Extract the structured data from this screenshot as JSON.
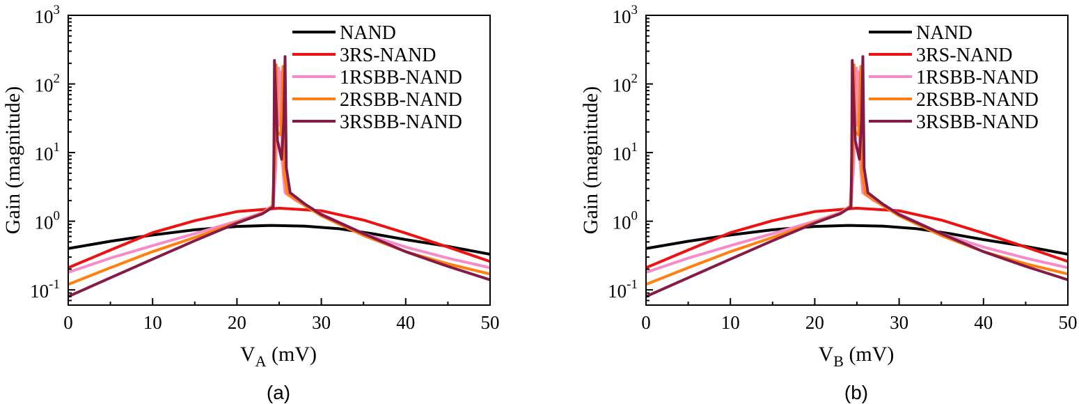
{
  "chart_data": [
    {
      "type": "line",
      "panel_label": "(a)",
      "xlabel_main": "V",
      "xlabel_sub": "A",
      "xlabel_unit": " (mV)",
      "ylabel": "Gain (magnitude)",
      "xlim": [
        0,
        50
      ],
      "ylim": [
        0.06,
        1000
      ],
      "y_scale": "log",
      "x_ticks": [
        0,
        10,
        20,
        30,
        40,
        50
      ],
      "x_minor_ticks": [
        5,
        15,
        25,
        35,
        45
      ],
      "y_ticks": [
        {
          "value": 0.1,
          "base": "10",
          "exp": "-1"
        },
        {
          "value": 1,
          "base": "10",
          "exp": "0"
        },
        {
          "value": 10,
          "base": "10",
          "exp": "1"
        },
        {
          "value": 100,
          "base": "10",
          "exp": "2"
        },
        {
          "value": 1000,
          "base": "10",
          "exp": "3"
        }
      ],
      "legend_position": "top-right",
      "series": [
        {
          "name": "NAND",
          "color": "#000000",
          "points": [
            [
              0,
              0.4
            ],
            [
              5,
              0.51
            ],
            [
              10,
              0.63
            ],
            [
              15,
              0.75
            ],
            [
              20,
              0.84
            ],
            [
              24,
              0.87
            ],
            [
              28,
              0.85
            ],
            [
              32,
              0.78
            ],
            [
              36,
              0.66
            ],
            [
              40,
              0.54
            ],
            [
              45,
              0.43
            ],
            [
              50,
              0.33
            ]
          ]
        },
        {
          "name": "3RS-NAND",
          "color": "#ee1111",
          "points": [
            [
              0,
              0.21
            ],
            [
              5,
              0.38
            ],
            [
              10,
              0.68
            ],
            [
              15,
              1.02
            ],
            [
              20,
              1.38
            ],
            [
              25,
              1.55
            ],
            [
              30,
              1.42
            ],
            [
              35,
              1.04
            ],
            [
              40,
              0.67
            ],
            [
              45,
              0.42
            ],
            [
              50,
              0.26
            ]
          ]
        },
        {
          "name": "1RSBB-NAND",
          "color": "#f78ac8",
          "points": [
            [
              0,
              0.18
            ],
            [
              5,
              0.29
            ],
            [
              10,
              0.44
            ],
            [
              15,
              0.66
            ],
            [
              20,
              1.0
            ],
            [
              23,
              1.33
            ],
            [
              24.3,
              1.7
            ],
            [
              24.6,
              6
            ],
            [
              24.8,
              60
            ],
            [
              24.95,
              170
            ],
            [
              25.05,
              25
            ],
            [
              25.2,
              150
            ],
            [
              25.35,
              8
            ],
            [
              25.7,
              2.6
            ],
            [
              27,
              2.0
            ],
            [
              30,
              1.28
            ],
            [
              35,
              0.66
            ],
            [
              40,
              0.42
            ],
            [
              45,
              0.29
            ],
            [
              50,
              0.21
            ]
          ]
        },
        {
          "name": "2RSBB-NAND",
          "color": "#ff8010",
          "points": [
            [
              0,
              0.12
            ],
            [
              5,
              0.21
            ],
            [
              10,
              0.36
            ],
            [
              15,
              0.58
            ],
            [
              20,
              0.96
            ],
            [
              23,
              1.3
            ],
            [
              24.2,
              1.65
            ],
            [
              24.5,
              8
            ],
            [
              24.65,
              190
            ],
            [
              24.8,
              20
            ],
            [
              25.2,
              18
            ],
            [
              25.45,
              180
            ],
            [
              25.6,
              5
            ],
            [
              26,
              2.5
            ],
            [
              28,
              1.7
            ],
            [
              30,
              1.2
            ],
            [
              35,
              0.62
            ],
            [
              40,
              0.36
            ],
            [
              45,
              0.24
            ],
            [
              50,
              0.17
            ]
          ]
        },
        {
          "name": "3RSBB-NAND",
          "color": "#861a46",
          "points": [
            [
              0,
              0.08
            ],
            [
              5,
              0.15
            ],
            [
              10,
              0.28
            ],
            [
              15,
              0.52
            ],
            [
              20,
              0.94
            ],
            [
              23,
              1.28
            ],
            [
              24.3,
              1.62
            ],
            [
              24.38,
              10
            ],
            [
              24.45,
              220
            ],
            [
              24.55,
              100
            ],
            [
              24.8,
              15
            ],
            [
              25.3,
              8
            ],
            [
              25.55,
              30
            ],
            [
              25.7,
              250
            ],
            [
              25.85,
              6
            ],
            [
              26.3,
              2.6
            ],
            [
              28,
              1.8
            ],
            [
              30,
              1.25
            ],
            [
              35,
              0.66
            ],
            [
              40,
              0.36
            ],
            [
              45,
              0.22
            ],
            [
              50,
              0.14
            ]
          ]
        }
      ]
    },
    {
      "type": "line",
      "panel_label": "(b)",
      "xlabel_main": "V",
      "xlabel_sub": "B",
      "xlabel_unit": " (mV)",
      "ylabel": "Gain (magnitude)",
      "xlim": [
        0,
        50
      ],
      "ylim": [
        0.06,
        1000
      ],
      "y_scale": "log",
      "x_ticks": [
        0,
        10,
        20,
        30,
        40,
        50
      ],
      "x_minor_ticks": [
        5,
        15,
        25,
        35,
        45
      ],
      "y_ticks": [
        {
          "value": 0.1,
          "base": "10",
          "exp": "-1"
        },
        {
          "value": 1,
          "base": "10",
          "exp": "0"
        },
        {
          "value": 10,
          "base": "10",
          "exp": "1"
        },
        {
          "value": 100,
          "base": "10",
          "exp": "2"
        },
        {
          "value": 1000,
          "base": "10",
          "exp": "3"
        }
      ],
      "legend_position": "top-right",
      "series": [
        {
          "name": "NAND",
          "color": "#000000",
          "points": [
            [
              0,
              0.4
            ],
            [
              5,
              0.51
            ],
            [
              10,
              0.63
            ],
            [
              15,
              0.75
            ],
            [
              20,
              0.84
            ],
            [
              24,
              0.87
            ],
            [
              28,
              0.85
            ],
            [
              32,
              0.78
            ],
            [
              36,
              0.66
            ],
            [
              40,
              0.54
            ],
            [
              45,
              0.43
            ],
            [
              50,
              0.33
            ]
          ]
        },
        {
          "name": "3RS-NAND",
          "color": "#ee1111",
          "points": [
            [
              0,
              0.21
            ],
            [
              5,
              0.38
            ],
            [
              10,
              0.68
            ],
            [
              15,
              1.02
            ],
            [
              20,
              1.38
            ],
            [
              25,
              1.55
            ],
            [
              30,
              1.42
            ],
            [
              35,
              1.04
            ],
            [
              40,
              0.67
            ],
            [
              45,
              0.42
            ],
            [
              50,
              0.26
            ]
          ]
        },
        {
          "name": "1RSBB-NAND",
          "color": "#f78ac8",
          "points": [
            [
              0,
              0.18
            ],
            [
              5,
              0.29
            ],
            [
              10,
              0.44
            ],
            [
              15,
              0.66
            ],
            [
              20,
              1.0
            ],
            [
              23,
              1.33
            ],
            [
              24.3,
              1.7
            ],
            [
              24.6,
              6
            ],
            [
              24.8,
              60
            ],
            [
              24.95,
              170
            ],
            [
              25.05,
              25
            ],
            [
              25.2,
              150
            ],
            [
              25.35,
              8
            ],
            [
              25.7,
              2.6
            ],
            [
              27,
              2.0
            ],
            [
              30,
              1.28
            ],
            [
              35,
              0.66
            ],
            [
              40,
              0.42
            ],
            [
              45,
              0.29
            ],
            [
              50,
              0.21
            ]
          ]
        },
        {
          "name": "2RSBB-NAND",
          "color": "#ff8010",
          "points": [
            [
              0,
              0.12
            ],
            [
              5,
              0.21
            ],
            [
              10,
              0.36
            ],
            [
              15,
              0.58
            ],
            [
              20,
              0.96
            ],
            [
              23,
              1.3
            ],
            [
              24.2,
              1.65
            ],
            [
              24.5,
              8
            ],
            [
              24.65,
              190
            ],
            [
              24.8,
              20
            ],
            [
              25.2,
              18
            ],
            [
              25.45,
              180
            ],
            [
              25.6,
              5
            ],
            [
              26,
              2.5
            ],
            [
              28,
              1.7
            ],
            [
              30,
              1.2
            ],
            [
              35,
              0.62
            ],
            [
              40,
              0.36
            ],
            [
              45,
              0.24
            ],
            [
              50,
              0.17
            ]
          ]
        },
        {
          "name": "3RSBB-NAND",
          "color": "#861a46",
          "points": [
            [
              0,
              0.08
            ],
            [
              5,
              0.15
            ],
            [
              10,
              0.28
            ],
            [
              15,
              0.52
            ],
            [
              20,
              0.94
            ],
            [
              23,
              1.28
            ],
            [
              24.3,
              1.62
            ],
            [
              24.38,
              10
            ],
            [
              24.45,
              220
            ],
            [
              24.55,
              100
            ],
            [
              24.8,
              15
            ],
            [
              25.3,
              8
            ],
            [
              25.55,
              30
            ],
            [
              25.7,
              250
            ],
            [
              25.85,
              6
            ],
            [
              26.3,
              2.6
            ],
            [
              28,
              1.8
            ],
            [
              30,
              1.25
            ],
            [
              35,
              0.66
            ],
            [
              40,
              0.36
            ],
            [
              45,
              0.22
            ],
            [
              50,
              0.14
            ]
          ]
        }
      ]
    }
  ]
}
